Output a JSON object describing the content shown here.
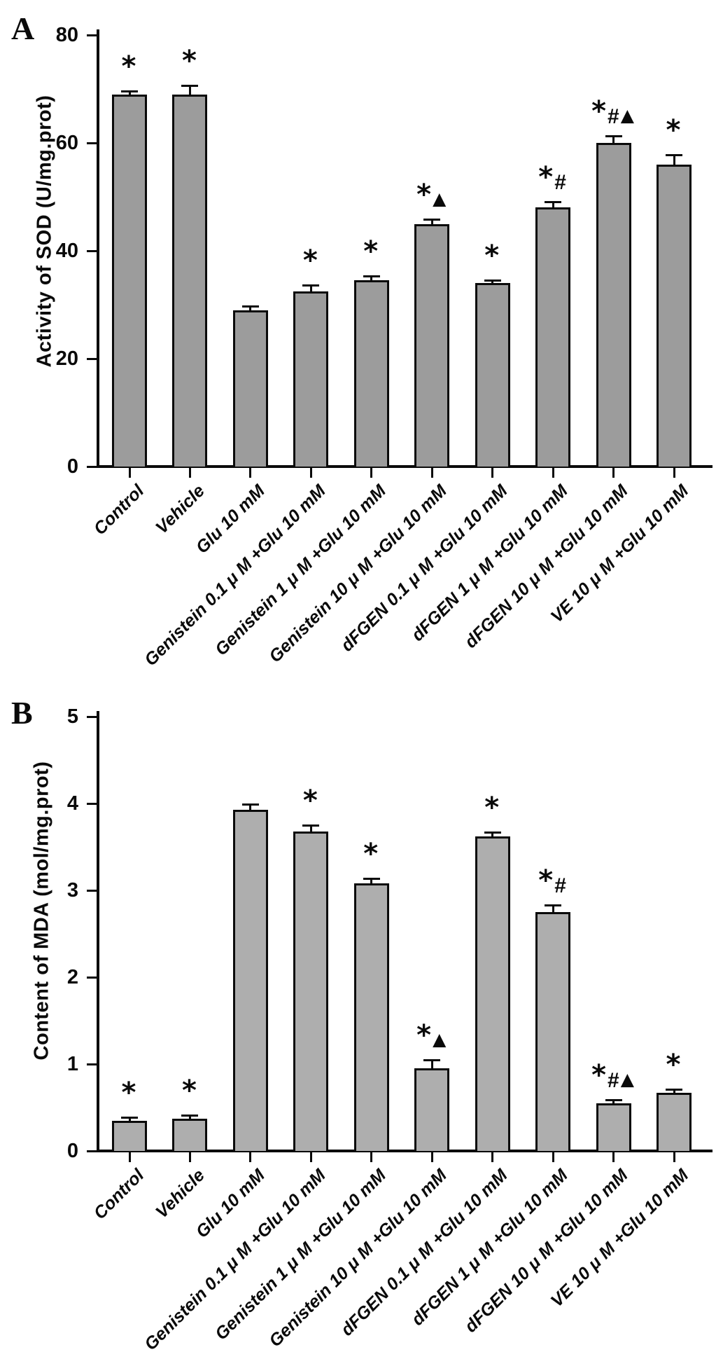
{
  "chart_data": [
    {
      "type": "bar",
      "letter": "A",
      "ylabel": "Activity of SOD  (U/mg.prot)",
      "ylim": [
        0,
        80
      ],
      "yticks": [
        0,
        20,
        40,
        60,
        80
      ],
      "grid": false,
      "legend": "none",
      "bar_fill": "#9c9c9c",
      "categories": [
        "Control",
        "Vehicle",
        "Glu 10 mM",
        "Genistein 0.1 μ M +Glu 10 mM",
        "Genistein 1 μ M +Glu 10 mM",
        "Genistein 10 μ M +Glu 10 mM",
        "dFGEN 0.1 μ M +Glu 10 mM",
        "dFGEN 1 μ M +Glu 10 mM",
        "dFGEN 10 μ M +Glu 10 mM",
        "VE 10 μ M +Glu 10 mM"
      ],
      "values": [
        69,
        69,
        29,
        32.5,
        34.5,
        45,
        34,
        48,
        60,
        56
      ],
      "errors": [
        0.5,
        1.5,
        0.6,
        1.0,
        0.7,
        0.7,
        0.4,
        0.9,
        1.2,
        1.7
      ],
      "significance": [
        "*",
        "*",
        "",
        "*",
        "*",
        "*▲",
        "*",
        "*#",
        "*#▲",
        "*"
      ]
    },
    {
      "type": "bar",
      "letter": "B",
      "ylabel": "Content of MDA  (mol/mg.prot)",
      "ylim": [
        0,
        5
      ],
      "yticks": [
        0,
        1,
        2,
        3,
        4,
        5
      ],
      "grid": false,
      "legend": "none",
      "bar_fill": "#aeaeae",
      "categories": [
        "Control",
        "Vehicle",
        "Glu 10 mM",
        "Genistein 0.1 μ M +Glu 10 mM",
        "Genistein 1 μ M +Glu 10 mM",
        "Genistein 10 μ M +Glu 10 mM",
        "dFGEN 0.1 μ M +Glu 10 mM",
        "dFGEN 1 μ M +Glu 10 mM",
        "dFGEN 10 μ M +Glu 10 mM",
        "VE 10 μ M +Glu 10 mM"
      ],
      "values": [
        0.35,
        0.37,
        3.93,
        3.68,
        3.08,
        0.95,
        3.62,
        2.75,
        0.55,
        0.67
      ],
      "errors": [
        0.03,
        0.03,
        0.05,
        0.06,
        0.05,
        0.09,
        0.04,
        0.07,
        0.03,
        0.03
      ],
      "significance": [
        "*",
        "*",
        "",
        "*",
        "*",
        "*▲",
        "*",
        "*#",
        "*#▲",
        "*"
      ]
    }
  ]
}
